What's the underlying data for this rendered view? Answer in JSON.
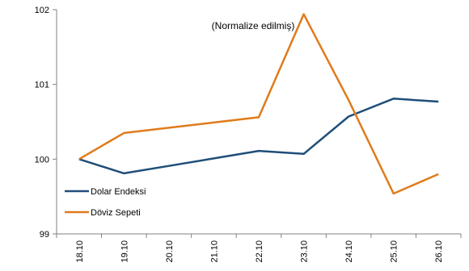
{
  "chart_data": {
    "type": "line",
    "title": "",
    "annotation": "(Normalize edilmiş)",
    "xlabel": "",
    "ylabel": "",
    "categories": [
      "18.10",
      "19.10",
      "20.10",
      "21.10",
      "22.10",
      "23.10",
      "24.10",
      "25.10",
      "26.10"
    ],
    "ylim": [
      99,
      102
    ],
    "yticks": [
      "99",
      "100",
      "101",
      "102"
    ],
    "grid": false,
    "legend_position": "bottom-left",
    "series": [
      {
        "name": "Dolar Endeksi",
        "color": "#1F4E79",
        "values": [
          100.0,
          99.81,
          99.91,
          100.01,
          100.11,
          100.07,
          100.57,
          100.81,
          100.77
        ]
      },
      {
        "name": "Döviz Sepeti",
        "color": "#E07B1A",
        "values": [
          100.0,
          100.35,
          100.42,
          100.49,
          100.56,
          101.94,
          100.79,
          99.54,
          99.8
        ]
      }
    ]
  }
}
